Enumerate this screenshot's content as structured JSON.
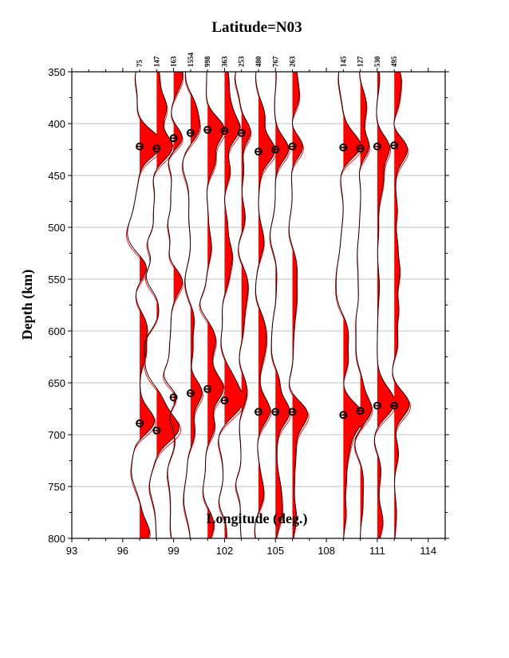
{
  "chart_data": {
    "type": "line",
    "title": "Latitude=N03",
    "xlabel": "Longitude (deg.)",
    "ylabel": "Depth (km)",
    "xlim": [
      93,
      115
    ],
    "ylim": [
      800,
      350
    ],
    "xticks": [
      93,
      96,
      99,
      102,
      105,
      108,
      111,
      114
    ],
    "yticks": [
      350,
      400,
      450,
      500,
      550,
      600,
      650,
      700,
      750,
      800
    ],
    "grid": "horizontal",
    "positive_fill_color": "#ff0000",
    "trace_colors": [
      "#000000",
      "#ff0000"
    ],
    "traces": [
      {
        "lon": 97,
        "count": "75",
        "d410": 422,
        "d660": 689
      },
      {
        "lon": 98,
        "count": "147",
        "d410": 424,
        "d660": 696
      },
      {
        "lon": 99,
        "count": "163",
        "d410": 414,
        "d660": 664
      },
      {
        "lon": 100,
        "count": "1554",
        "d410": 409,
        "d660": 660
      },
      {
        "lon": 101,
        "count": "998",
        "d410": 406,
        "d660": 656
      },
      {
        "lon": 102,
        "count": "363",
        "d410": 407,
        "d660": 667
      },
      {
        "lon": 103,
        "count": "253",
        "d410": 409,
        "d660": null
      },
      {
        "lon": 104,
        "count": "480",
        "d410": 427,
        "d660": 678
      },
      {
        "lon": 105,
        "count": "767",
        "d410": 425,
        "d660": 678
      },
      {
        "lon": 106,
        "count": "263",
        "d410": 422,
        "d660": 678
      },
      {
        "lon": 109,
        "count": "145",
        "d410": 423,
        "d660": 681
      },
      {
        "lon": 110,
        "count": "127",
        "d410": 424,
        "d660": 677
      },
      {
        "lon": 111,
        "count": "530",
        "d410": 422,
        "d660": 672
      },
      {
        "lon": 112,
        "count": "495",
        "d410": 421,
        "d660": 672
      }
    ]
  }
}
